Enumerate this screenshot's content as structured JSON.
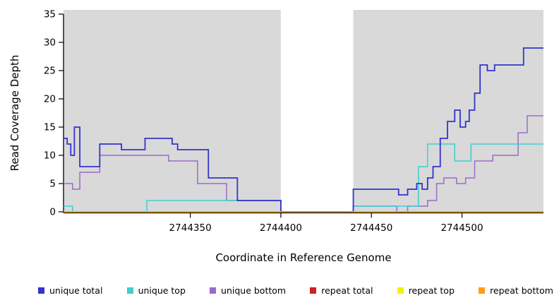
{
  "chart_data": {
    "type": "line",
    "subtype": "step",
    "title": "",
    "xlabel": "Coordinate in Reference Genome",
    "ylabel": "Read Coverage Depth",
    "xlim": [
      2744280,
      2744545
    ],
    "ylim": [
      0,
      35
    ],
    "xticks": [
      2744350,
      2744400,
      2744450,
      2744500
    ],
    "yticks": [
      0,
      5,
      10,
      15,
      20,
      25,
      30,
      35
    ],
    "grid": "off",
    "legend_position": "bottom",
    "background": {
      "panel_color": "#D9D9D9",
      "gap_region": [
        2744400,
        2744440
      ]
    },
    "draw_order": [
      3,
      4,
      2,
      1,
      0,
      5
    ],
    "series": [
      {
        "name": "unique total",
        "color": "#3333CC",
        "line_width": 1.8,
        "points": [
          [
            2744280,
            13
          ],
          [
            2744282,
            12
          ],
          [
            2744284,
            10
          ],
          [
            2744286,
            15
          ],
          [
            2744289,
            8
          ],
          [
            2744300,
            12
          ],
          [
            2744312,
            11
          ],
          [
            2744325,
            13
          ],
          [
            2744340,
            12
          ],
          [
            2744343,
            11
          ],
          [
            2744360,
            6
          ],
          [
            2744376,
            2
          ],
          [
            2744400,
            0
          ],
          [
            2744440,
            4
          ],
          [
            2744465,
            3
          ],
          [
            2744470,
            4
          ],
          [
            2744475,
            5
          ],
          [
            2744478,
            4
          ],
          [
            2744481,
            6
          ],
          [
            2744484,
            8
          ],
          [
            2744488,
            13
          ],
          [
            2744492,
            16
          ],
          [
            2744496,
            18
          ],
          [
            2744499,
            15
          ],
          [
            2744502,
            16
          ],
          [
            2744504,
            18
          ],
          [
            2744507,
            21
          ],
          [
            2744510,
            26
          ],
          [
            2744514,
            25
          ],
          [
            2744518,
            26
          ],
          [
            2744534,
            29
          ]
        ]
      },
      {
        "name": "unique top",
        "color": "#3ECFCF",
        "line_width": 1.5,
        "points": [
          [
            2744280,
            1
          ],
          [
            2744285,
            0
          ],
          [
            2744326,
            2
          ],
          [
            2744400,
            0
          ],
          [
            2744440,
            1
          ],
          [
            2744476,
            8
          ],
          [
            2744481,
            12
          ],
          [
            2744496,
            9
          ],
          [
            2744505,
            12
          ]
        ]
      },
      {
        "name": "unique bottom",
        "color": "#9B6BC9",
        "line_width": 1.5,
        "points": [
          [
            2744280,
            5
          ],
          [
            2744285,
            4
          ],
          [
            2744289,
            7
          ],
          [
            2744300,
            10
          ],
          [
            2744338,
            9
          ],
          [
            2744354,
            5
          ],
          [
            2744370,
            2
          ],
          [
            2744400,
            0
          ],
          [
            2744440,
            1
          ],
          [
            2744464,
            0
          ],
          [
            2744470,
            1
          ],
          [
            2744481,
            2
          ],
          [
            2744486,
            5
          ],
          [
            2744490,
            6
          ],
          [
            2744497,
            5
          ],
          [
            2744502,
            6
          ],
          [
            2744507,
            9
          ],
          [
            2744517,
            10
          ],
          [
            2744531,
            14
          ],
          [
            2744536,
            17
          ]
        ]
      },
      {
        "name": "repeat total",
        "color": "#CC2222",
        "line_width": 1.5,
        "points": [
          [
            2744280,
            0
          ]
        ]
      },
      {
        "name": "repeat top",
        "color": "#F2F200",
        "line_width": 1.5,
        "points": [
          [
            2744280,
            0
          ]
        ]
      },
      {
        "name": "repeat bottom",
        "color": "#FF9D12",
        "line_width": 1.6,
        "points": [
          [
            2744280,
            0
          ]
        ]
      }
    ]
  }
}
